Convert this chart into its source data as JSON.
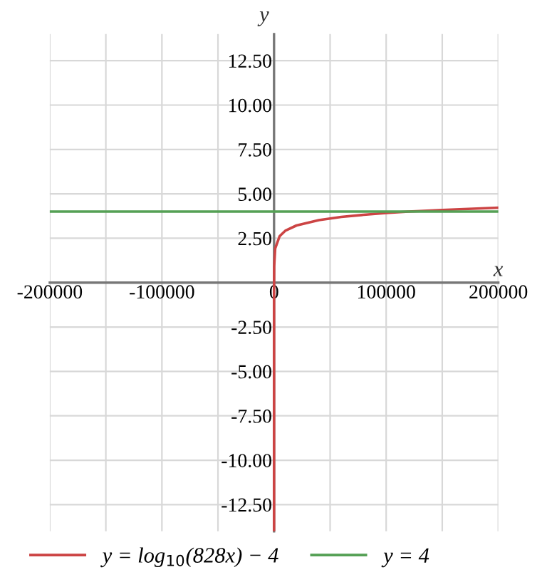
{
  "chart_data": {
    "type": "line",
    "xlabel": "x",
    "ylabel": "y",
    "series": [
      {
        "name": "y = log$_{10}$(828x) − 4",
        "color": "#cc4444",
        "x": [
          1.2e-13,
          1e-09,
          1e-05,
          0.01,
          1,
          12,
          100,
          1000,
          5000,
          10000,
          20000,
          40000,
          60000,
          80000,
          100000,
          120000,
          150000,
          200000
        ],
        "values": [
          -14,
          -10.08,
          -6.08,
          -3.08,
          -1.08,
          0,
          0.92,
          1.92,
          2.62,
          2.92,
          3.22,
          3.52,
          3.7,
          3.82,
          3.92,
          4.0,
          4.09,
          4.22
        ]
      },
      {
        "name": "y = 4",
        "color": "#55a055",
        "x": [
          -200000,
          200000
        ],
        "values": [
          4,
          4
        ]
      }
    ],
    "xlim": [
      -200000,
      200000
    ],
    "ylim": [
      -14,
      14
    ],
    "xticks": [
      -200000,
      {
        "value": -150000,
        "label": null
      },
      -100000,
      {
        "value": -50000,
        "label": null
      },
      0,
      {
        "value": 50000,
        "label": null
      },
      100000,
      {
        "value": 150000,
        "label": null
      },
      200000
    ],
    "yticks": [
      {
        "value": -12.5,
        "label": "-12.50"
      },
      {
        "value": -10,
        "label": "-10.00"
      },
      {
        "value": -7.5,
        "label": "-7.50"
      },
      {
        "value": -5,
        "label": "-5.00"
      },
      {
        "value": -2.5,
        "label": "-2.50"
      },
      {
        "value": 0,
        "label": null
      },
      {
        "value": 2.5,
        "label": "2.50"
      },
      {
        "value": 5,
        "label": "5.00"
      },
      {
        "value": 7.5,
        "label": "7.50"
      },
      {
        "value": 10,
        "label": "10.00"
      },
      {
        "value": 12.5,
        "label": "12.50"
      }
    ],
    "grid": true,
    "legend": "bottom",
    "marker": "none",
    "line_style": "solid"
  }
}
